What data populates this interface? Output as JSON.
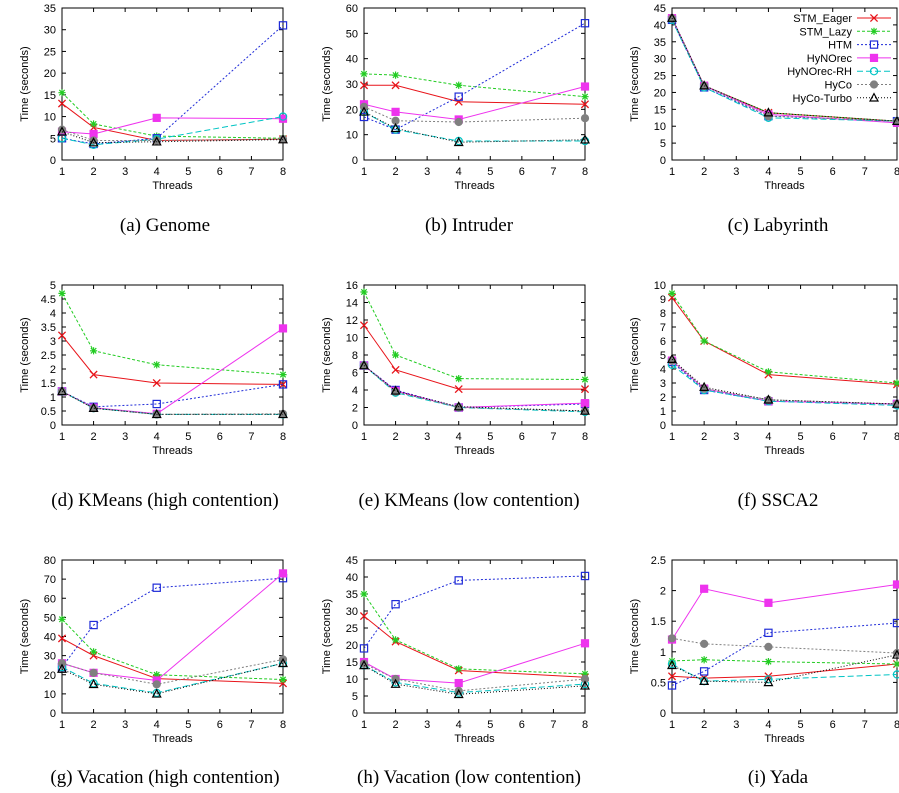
{
  "series_styles": [
    {
      "name": "STM_Eager",
      "color": "#e8141a",
      "marker": "x",
      "dash": ""
    },
    {
      "name": "STM_Lazy",
      "color": "#22cc22",
      "marker": "star",
      "dash": "3,2"
    },
    {
      "name": "HTM",
      "color": "#1f2bd8",
      "marker": "square-open",
      "dash": "2,2"
    },
    {
      "name": "HyNOrec",
      "color": "#ee33ee",
      "marker": "square-filled",
      "dash": ""
    },
    {
      "name": "HyNOrec-RH",
      "color": "#00c4c4",
      "marker": "circle-open",
      "dash": "6,3"
    },
    {
      "name": "HyCo",
      "color": "#808080",
      "marker": "circle-filled",
      "dash": "2,2"
    },
    {
      "name": "HyCo-Turbo",
      "color": "#000000",
      "marker": "triangle",
      "dash": "1,2"
    }
  ],
  "chart_data": [
    {
      "type": "line",
      "caption": "(a) Genome",
      "xlabel": "Threads",
      "ylabel": "Time (seconds)",
      "x": [
        1,
        2,
        4,
        8
      ],
      "xlim": [
        1,
        8
      ],
      "xticks": [
        1,
        2,
        3,
        4,
        5,
        6,
        7,
        8
      ],
      "ylim": [
        0,
        35
      ],
      "yticks": [
        "0",
        "5",
        "10",
        "15",
        "20",
        "25",
        "30",
        "35"
      ],
      "series": [
        {
          "name": "STM_Eager",
          "values": [
            13,
            7.5,
            4.5,
            4.8
          ]
        },
        {
          "name": "STM_Lazy",
          "values": [
            15.5,
            8.3,
            5.5,
            5
          ]
        },
        {
          "name": "HTM",
          "values": [
            5,
            3.7,
            5,
            31
          ]
        },
        {
          "name": "HyNOrec",
          "values": [
            6.5,
            6,
            9.7,
            9.5
          ]
        },
        {
          "name": "HyNOrec-RH",
          "values": [
            5,
            3.5,
            4.8,
            10
          ]
        },
        {
          "name": "HyCo",
          "values": [
            7,
            4.5,
            4.5,
            4.8
          ]
        },
        {
          "name": "HyCo-Turbo",
          "values": [
            6.5,
            4,
            4.2,
            4.7
          ]
        }
      ]
    },
    {
      "type": "line",
      "caption": "(b) Intruder",
      "xlabel": "Threads",
      "ylabel": "Time (seconds)",
      "x": [
        1,
        2,
        4,
        8
      ],
      "xlim": [
        1,
        8
      ],
      "xticks": [
        1,
        2,
        3,
        4,
        5,
        6,
        7,
        8
      ],
      "ylim": [
        0,
        60
      ],
      "yticks": [
        "0",
        "10",
        "20",
        "30",
        "40",
        "50",
        "60"
      ],
      "series": [
        {
          "name": "STM_Eager",
          "values": [
            29.5,
            29.5,
            23,
            22
          ]
        },
        {
          "name": "STM_Lazy",
          "values": [
            34,
            33.5,
            29.5,
            25
          ]
        },
        {
          "name": "HTM",
          "values": [
            17,
            12,
            25,
            54
          ]
        },
        {
          "name": "HyNOrec",
          "values": [
            22,
            19,
            16,
            29
          ]
        },
        {
          "name": "HyNOrec-RH",
          "values": [
            19,
            12,
            7.5,
            7.5
          ]
        },
        {
          "name": "HyCo",
          "values": [
            21,
            15.5,
            15,
            16.5
          ]
        },
        {
          "name": "HyCo-Turbo",
          "values": [
            19,
            12.5,
            7,
            8
          ]
        }
      ]
    },
    {
      "type": "line",
      "caption": "(c) Labyrinth",
      "xlabel": "Threads",
      "ylabel": "Time (seconds)",
      "x": [
        1,
        2,
        4,
        8
      ],
      "xlim": [
        1,
        8
      ],
      "xticks": [
        1,
        2,
        3,
        4,
        5,
        6,
        7,
        8
      ],
      "ylim": [
        0,
        45
      ],
      "yticks": [
        "0",
        "5",
        "10",
        "15",
        "20",
        "25",
        "30",
        "35",
        "40",
        "45"
      ],
      "legend": "top-right",
      "series": [
        {
          "name": "STM_Eager",
          "values": [
            42,
            22,
            14,
            11.5
          ]
        },
        {
          "name": "STM_Lazy",
          "values": [
            42,
            22,
            14,
            11.5
          ]
        },
        {
          "name": "HTM",
          "values": [
            41.5,
            21.5,
            13,
            11.5
          ]
        },
        {
          "name": "HyNOrec",
          "values": [
            42,
            22,
            13.5,
            11
          ]
        },
        {
          "name": "HyNOrec-RH",
          "values": [
            41.5,
            21.5,
            12.5,
            11.5
          ]
        },
        {
          "name": "HyCo",
          "values": [
            42,
            22,
            13,
            11.5
          ]
        },
        {
          "name": "HyCo-Turbo",
          "values": [
            42,
            22,
            14,
            11.5
          ]
        }
      ]
    },
    {
      "type": "line",
      "caption": "(d) KMeans (high contention)",
      "xlabel": "Threads",
      "ylabel": "Time (seconds)",
      "x": [
        1,
        2,
        4,
        8
      ],
      "xlim": [
        1,
        8
      ],
      "xticks": [
        1,
        2,
        3,
        4,
        5,
        6,
        7,
        8
      ],
      "ylim": [
        0,
        5
      ],
      "yticks": [
        "0",
        "0.5",
        "1",
        "1.5",
        "2",
        "2.5",
        "3",
        "3.5",
        "4",
        "4.5",
        "5"
      ],
      "series": [
        {
          "name": "STM_Eager",
          "values": [
            3.2,
            1.8,
            1.5,
            1.45
          ]
        },
        {
          "name": "STM_Lazy",
          "values": [
            4.7,
            2.65,
            2.15,
            1.8
          ]
        },
        {
          "name": "HTM",
          "values": [
            1.2,
            0.65,
            0.75,
            1.45
          ]
        },
        {
          "name": "HyNOrec",
          "values": [
            1.2,
            0.62,
            0.4,
            3.45
          ]
        },
        {
          "name": "HyNOrec-RH",
          "values": [
            1.2,
            0.6,
            0.38,
            0.38
          ]
        },
        {
          "name": "HyCo",
          "values": [
            1.2,
            0.6,
            0.38,
            0.4
          ]
        },
        {
          "name": "HyCo-Turbo",
          "values": [
            1.2,
            0.6,
            0.38,
            0.38
          ]
        }
      ]
    },
    {
      "type": "line",
      "caption": "(e) KMeans (low contention)",
      "xlabel": "Threads",
      "ylabel": "Time (seconds)",
      "x": [
        1,
        2,
        4,
        8
      ],
      "xlim": [
        1,
        8
      ],
      "xticks": [
        1,
        2,
        3,
        4,
        5,
        6,
        7,
        8
      ],
      "ylim": [
        0,
        16
      ],
      "yticks": [
        "0",
        "2",
        "4",
        "6",
        "8",
        "10",
        "12",
        "14",
        "16"
      ],
      "series": [
        {
          "name": "STM_Eager",
          "values": [
            11.4,
            6.3,
            4.1,
            4.1
          ]
        },
        {
          "name": "STM_Lazy",
          "values": [
            15.2,
            8,
            5.3,
            5.2
          ]
        },
        {
          "name": "HTM",
          "values": [
            6.8,
            4,
            2,
            2.4
          ]
        },
        {
          "name": "HyNOrec",
          "values": [
            6.8,
            3.9,
            2,
            2.5
          ]
        },
        {
          "name": "HyNOrec-RH",
          "values": [
            6.8,
            3.7,
            2,
            1.5
          ]
        },
        {
          "name": "HyCo",
          "values": [
            6.8,
            3.8,
            2,
            1.6
          ]
        },
        {
          "name": "HyCo-Turbo",
          "values": [
            6.8,
            3.9,
            2.1,
            1.6
          ]
        }
      ]
    },
    {
      "type": "line",
      "caption": "(f) SSCA2",
      "xlabel": "Threads",
      "ylabel": "Time (seconds)",
      "x": [
        1,
        2,
        4,
        8
      ],
      "xlim": [
        1,
        8
      ],
      "xticks": [
        1,
        2,
        3,
        4,
        5,
        6,
        7,
        8
      ],
      "ylim": [
        0,
        10
      ],
      "yticks": [
        "0",
        "1",
        "2",
        "3",
        "4",
        "5",
        "6",
        "7",
        "8",
        "9",
        "10"
      ],
      "series": [
        {
          "name": "STM_Eager",
          "values": [
            9.1,
            6,
            3.6,
            2.9
          ]
        },
        {
          "name": "STM_Lazy",
          "values": [
            9.4,
            6,
            3.8,
            3
          ]
        },
        {
          "name": "HTM",
          "values": [
            4.5,
            2.5,
            1.7,
            1.5
          ]
        },
        {
          "name": "HyNOrec",
          "values": [
            4.6,
            2.6,
            1.7,
            1.5
          ]
        },
        {
          "name": "HyNOrec-RH",
          "values": [
            4.3,
            2.5,
            1.7,
            1.4
          ]
        },
        {
          "name": "HyCo",
          "values": [
            4.6,
            2.6,
            1.8,
            1.5
          ]
        },
        {
          "name": "HyCo-Turbo",
          "values": [
            4.7,
            2.7,
            1.8,
            1.5
          ]
        }
      ]
    },
    {
      "type": "line",
      "caption": "(g) Vacation (high contention)",
      "xlabel": "Threads",
      "ylabel": "Time (seconds)",
      "x": [
        1,
        2,
        4,
        8
      ],
      "xlim": [
        1,
        8
      ],
      "xticks": [
        1,
        2,
        3,
        4,
        5,
        6,
        7,
        8
      ],
      "ylim": [
        0,
        80
      ],
      "yticks": [
        "0",
        "10",
        "20",
        "30",
        "40",
        "50",
        "60",
        "70",
        "80"
      ],
      "series": [
        {
          "name": "STM_Eager",
          "values": [
            39,
            30,
            18,
            15.5
          ]
        },
        {
          "name": "STM_Lazy",
          "values": [
            49,
            32,
            20,
            17.5
          ]
        },
        {
          "name": "HTM",
          "values": [
            24,
            46,
            65.5,
            70.5
          ]
        },
        {
          "name": "HyNOrec",
          "values": [
            26,
            21,
            17,
            73
          ]
        },
        {
          "name": "HyNOrec-RH",
          "values": [
            24,
            15.5,
            10.5,
            26
          ]
        },
        {
          "name": "HyCo",
          "values": [
            26,
            21,
            15,
            28
          ]
        },
        {
          "name": "HyCo-Turbo",
          "values": [
            23,
            15,
            10,
            26
          ]
        }
      ]
    },
    {
      "type": "line",
      "caption": "(h) Vacation (low contention)",
      "xlabel": "Threads",
      "ylabel": "Time (seconds)",
      "x": [
        1,
        2,
        4,
        8
      ],
      "xlim": [
        1,
        8
      ],
      "xticks": [
        1,
        2,
        3,
        4,
        5,
        6,
        7,
        8
      ],
      "ylim": [
        0,
        45
      ],
      "yticks": [
        "0",
        "5",
        "10",
        "15",
        "20",
        "25",
        "30",
        "35",
        "40",
        "45"
      ],
      "series": [
        {
          "name": "STM_Eager",
          "values": [
            28.5,
            21,
            12.5,
            10.5
          ]
        },
        {
          "name": "STM_Lazy",
          "values": [
            35,
            21.5,
            13,
            11.5
          ]
        },
        {
          "name": "HTM",
          "values": [
            19,
            32,
            39,
            40.3
          ]
        },
        {
          "name": "HyNOrec",
          "values": [
            15,
            10,
            8.8,
            20.5
          ]
        },
        {
          "name": "HyNOrec-RH",
          "values": [
            14,
            9,
            6,
            8.5
          ]
        },
        {
          "name": "HyCo",
          "values": [
            14.5,
            10,
            6.5,
            10
          ]
        },
        {
          "name": "HyCo-Turbo",
          "values": [
            14,
            8.5,
            5.5,
            8
          ]
        }
      ]
    },
    {
      "type": "line",
      "caption": "(i) Yada",
      "xlabel": "Threads",
      "ylabel": "Time (seconds)",
      "x": [
        1,
        2,
        4,
        8
      ],
      "xlim": [
        1,
        8
      ],
      "xticks": [
        1,
        2,
        3,
        4,
        5,
        6,
        7,
        8
      ],
      "ylim": [
        0,
        2.5
      ],
      "yticks": [
        "0",
        "0.5",
        "1",
        "1.5",
        "2",
        "2.5"
      ],
      "series": [
        {
          "name": "STM_Eager",
          "values": [
            0.6,
            0.57,
            0.6,
            0.8
          ]
        },
        {
          "name": "STM_Lazy",
          "values": [
            0.85,
            0.87,
            0.84,
            0.8
          ]
        },
        {
          "name": "HTM",
          "values": [
            0.45,
            0.68,
            1.31,
            1.47
          ]
        },
        {
          "name": "HyNOrec",
          "values": [
            1.2,
            2.03,
            1.8,
            2.1
          ]
        },
        {
          "name": "HyNOrec-RH",
          "values": [
            0.8,
            0.52,
            0.55,
            0.63
          ]
        },
        {
          "name": "HyCo",
          "values": [
            1.22,
            1.13,
            1.08,
            0.98
          ]
        },
        {
          "name": "HyCo-Turbo",
          "values": [
            0.78,
            0.52,
            0.5,
            0.95
          ]
        }
      ]
    }
  ]
}
